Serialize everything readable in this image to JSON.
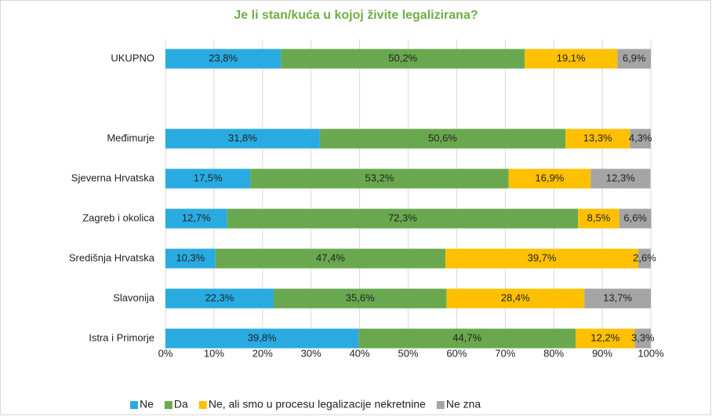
{
  "chart_data": {
    "type": "bar",
    "orientation": "horizontal",
    "stacked": true,
    "title": "Je li stan/kuća u kojoj živite legalizirana?",
    "categories": [
      "UKUPNO",
      null,
      "Međimurje",
      "Sjeverna Hrvatska",
      "Zagreb i okolica",
      "Središnja Hrvatska",
      "Slavonija",
      "Istra i Primorje"
    ],
    "series": [
      {
        "name": "Ne",
        "color": "#29abe2",
        "values": [
          23.8,
          null,
          31.8,
          17.5,
          12.7,
          10.3,
          22.3,
          39.8
        ],
        "value_labels": [
          "23,8%",
          null,
          "31,8%",
          "17,5%",
          "12,7%",
          "10,3%",
          "22,3%",
          "39,8%"
        ]
      },
      {
        "name": "Da",
        "color": "#6aa84f",
        "values": [
          50.2,
          null,
          50.6,
          53.2,
          72.3,
          47.4,
          35.6,
          44.7
        ],
        "value_labels": [
          "50,2%",
          null,
          "50,6%",
          "53,2%",
          "72,3%",
          "47,4%",
          "35,6%",
          "44,7%"
        ]
      },
      {
        "name": "Ne, ali smo u procesu legalizacije nekretnine",
        "color": "#ffc000",
        "values": [
          19.1,
          null,
          13.3,
          16.9,
          8.5,
          39.7,
          28.4,
          12.2
        ],
        "value_labels": [
          "19,1%",
          null,
          "13,3%",
          "16,9%",
          "8,5%",
          "39,7%",
          "28,4%",
          "12,2%"
        ]
      },
      {
        "name": "Ne zna",
        "color": "#a5a5a5",
        "values": [
          6.9,
          null,
          4.3,
          12.3,
          6.6,
          2.6,
          13.7,
          3.3
        ],
        "value_labels": [
          "6,9%",
          null,
          "4,3%",
          "12,3%",
          "6,6%",
          "2,6%",
          "13,7%",
          "3,3%"
        ]
      }
    ],
    "xlim": [
      0,
      100
    ],
    "xticks": [
      {
        "value": 0,
        "label": "0%"
      },
      {
        "value": 10,
        "label": "10%"
      },
      {
        "value": 20,
        "label": "20%"
      },
      {
        "value": 30,
        "label": "30%"
      },
      {
        "value": 40,
        "label": "40%"
      },
      {
        "value": 50,
        "label": "50%"
      },
      {
        "value": 60,
        "label": "60%"
      },
      {
        "value": 70,
        "label": "70%"
      },
      {
        "value": 80,
        "label": "80%"
      },
      {
        "value": 90,
        "label": "90%"
      },
      {
        "value": 100,
        "label": "100%"
      }
    ],
    "grid": true,
    "legend": "bottom"
  }
}
